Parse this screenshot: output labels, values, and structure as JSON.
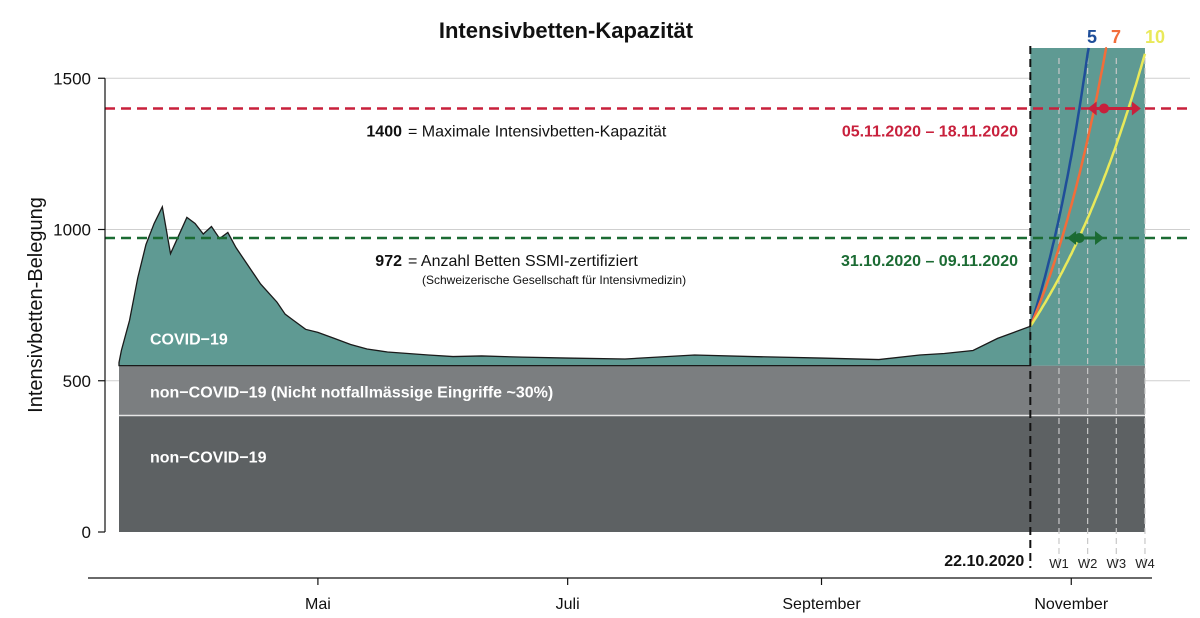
{
  "chart_data": {
    "type": "area",
    "title": "Intensivbetten-Kapazität",
    "ylabel": "Intensivbetten-Belegung",
    "ylim": [
      0,
      1600
    ],
    "yticks": [
      0,
      500,
      1000,
      1500
    ],
    "xlim": [
      "2020-03-10",
      "2020-11-30"
    ],
    "xticks": [
      {
        "date": "2020-05-01",
        "label": "Mai"
      },
      {
        "date": "2020-07-01",
        "label": "Juli"
      },
      {
        "date": "2020-09-01",
        "label": "September"
      },
      {
        "date": "2020-11-01",
        "label": "November"
      }
    ],
    "colors": {
      "covid": "#5f9a93",
      "non_covid_elective": "#7b7e80",
      "non_covid": "#5d6163",
      "max_capacity": "#c8203c",
      "certified": "#1b6b33",
      "scenario_5": "#1f4e99",
      "scenario_7": "#f26d3a",
      "scenario_10": "#e9e95a"
    },
    "layers": [
      {
        "name": "COVID−19",
        "type": "series",
        "color_key": "covid"
      },
      {
        "name": "non−COVID−19 (Nicht notfallmässige Eingriffe ~30%)",
        "type": "band",
        "from": 385,
        "to": 550,
        "color_key": "non_covid_elective"
      },
      {
        "name": "non−COVID−19",
        "type": "band",
        "from": 0,
        "to": 385,
        "color_key": "non_covid"
      }
    ],
    "series": [
      {
        "name": "COVID−19",
        "x": [
          "2020-03-10",
          "2020-03-12",
          "2020-03-14",
          "2020-03-16",
          "2020-03-18",
          "2020-03-20",
          "2020-03-22",
          "2020-03-24",
          "2020-03-26",
          "2020-03-28",
          "2020-03-30",
          "2020-04-01",
          "2020-04-03",
          "2020-04-05",
          "2020-04-07",
          "2020-04-09",
          "2020-04-11",
          "2020-04-13",
          "2020-04-15",
          "2020-04-17",
          "2020-04-19",
          "2020-04-21",
          "2020-04-23",
          "2020-04-25",
          "2020-04-28",
          "2020-05-01",
          "2020-05-05",
          "2020-05-09",
          "2020-05-13",
          "2020-05-18",
          "2020-05-23",
          "2020-05-28",
          "2020-06-03",
          "2020-06-10",
          "2020-06-20",
          "2020-07-01",
          "2020-07-15",
          "2020-08-01",
          "2020-08-15",
          "2020-09-01",
          "2020-09-15",
          "2020-09-25",
          "2020-10-01",
          "2020-10-08",
          "2020-10-14",
          "2020-10-18",
          "2020-10-22"
        ],
        "values": [
          555,
          560,
          600,
          700,
          840,
          950,
          1020,
          1075,
          920,
          980,
          1040,
          1020,
          985,
          1010,
          970,
          990,
          940,
          900,
          860,
          820,
          790,
          760,
          720,
          700,
          670,
          660,
          640,
          620,
          605,
          595,
          590,
          585,
          580,
          582,
          578,
          575,
          572,
          585,
          580,
          575,
          570,
          585,
          590,
          600,
          640,
          660,
          680
        ]
      }
    ],
    "projection_start": "2020-10-22",
    "projection_start_label": "22.10.2020",
    "projection_start_value": 680,
    "projection_area_top": 1600,
    "week_markers": [
      {
        "date": "2020-10-29",
        "label": "W1"
      },
      {
        "date": "2020-11-05",
        "label": "W2"
      },
      {
        "date": "2020-11-12",
        "label": "W3"
      },
      {
        "date": "2020-11-19",
        "label": "W4"
      }
    ],
    "scenarios": [
      {
        "name": "5",
        "color_key": "scenario_5",
        "doubling_days": 11.5
      },
      {
        "name": "7",
        "color_key": "scenario_7",
        "doubling_days": 15
      },
      {
        "name": "10",
        "color_key": "scenario_10",
        "doubling_days": 23
      }
    ],
    "thresholds": [
      {
        "value": 1400,
        "color_key": "max_capacity",
        "value_label": "1400",
        "text": "=  Maximale Intensivbetten-Kapazität",
        "sub_text": "",
        "date_range": "05.11.2020 – 18.11.2020",
        "range_start": "2020-11-05",
        "range_end": "2020-11-18",
        "range_mid": "2020-11-09"
      },
      {
        "value": 972,
        "color_key": "certified",
        "value_label": "972",
        "text": "=  Anzahl Betten SSMI-zertifiziert",
        "sub_text": "(Schweizerische Gesellschaft für Intensivmedizin)",
        "date_range": "31.10.2020 – 09.11.2020",
        "range_start": "2020-10-31",
        "range_end": "2020-11-09",
        "range_mid": "2020-11-03"
      }
    ]
  }
}
